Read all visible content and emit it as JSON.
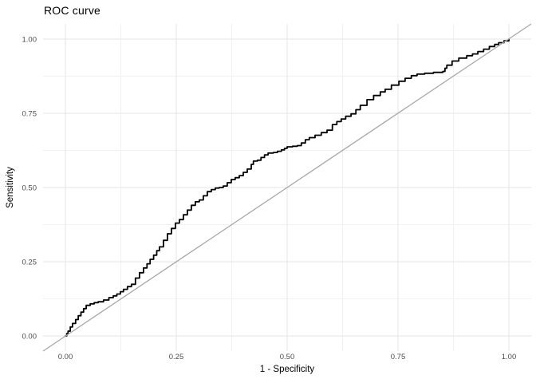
{
  "chart_data": {
    "type": "line",
    "title": "ROC curve",
    "xlabel": "1 - Specificity",
    "ylabel": "Sensitivity",
    "xlim": [
      0,
      1
    ],
    "ylim": [
      0,
      1
    ],
    "x_ticks": [
      0,
      0.25,
      0.5,
      0.75,
      1
    ],
    "y_ticks": [
      0,
      0.25,
      0.5,
      0.75,
      1
    ],
    "x_tick_labels": [
      "0.00",
      "0.25",
      "0.50",
      "0.75",
      "1.00"
    ],
    "y_tick_labels": [
      "0.00",
      "0.25",
      "0.50",
      "0.75",
      "1.00"
    ],
    "grid": "major+minor",
    "legend": "none",
    "colors": {
      "background": "#ffffff",
      "grid_major": "#e6e6e6",
      "grid_minor": "#f2f2f2",
      "tick_label": "#4d4d4d",
      "title": "#000000",
      "roc_line": "#000000",
      "reference_line": "#a8a8a8"
    },
    "series": [
      {
        "name": "ROC curve",
        "draw": "step",
        "color": "#000000",
        "width": 1.8,
        "points": [
          [
            0.0,
            0.0
          ],
          [
            0.003,
            0.008
          ],
          [
            0.006,
            0.016
          ],
          [
            0.011,
            0.03
          ],
          [
            0.016,
            0.042
          ],
          [
            0.023,
            0.055
          ],
          [
            0.029,
            0.068
          ],
          [
            0.035,
            0.08
          ],
          [
            0.041,
            0.092
          ],
          [
            0.047,
            0.103
          ],
          [
            0.056,
            0.108
          ],
          [
            0.065,
            0.112
          ],
          [
            0.074,
            0.115
          ],
          [
            0.086,
            0.121
          ],
          [
            0.098,
            0.129
          ],
          [
            0.108,
            0.135
          ],
          [
            0.116,
            0.141
          ],
          [
            0.124,
            0.149
          ],
          [
            0.131,
            0.157
          ],
          [
            0.14,
            0.166
          ],
          [
            0.149,
            0.174
          ],
          [
            0.158,
            0.195
          ],
          [
            0.167,
            0.213
          ],
          [
            0.176,
            0.229
          ],
          [
            0.184,
            0.243
          ],
          [
            0.191,
            0.258
          ],
          [
            0.199,
            0.272
          ],
          [
            0.206,
            0.287
          ],
          [
            0.212,
            0.3
          ],
          [
            0.221,
            0.322
          ],
          [
            0.23,
            0.344
          ],
          [
            0.239,
            0.362
          ],
          [
            0.248,
            0.38
          ],
          [
            0.257,
            0.392
          ],
          [
            0.266,
            0.408
          ],
          [
            0.275,
            0.424
          ],
          [
            0.284,
            0.44
          ],
          [
            0.293,
            0.452
          ],
          [
            0.302,
            0.458
          ],
          [
            0.311,
            0.472
          ],
          [
            0.32,
            0.486
          ],
          [
            0.329,
            0.493
          ],
          [
            0.338,
            0.498
          ],
          [
            0.347,
            0.5
          ],
          [
            0.356,
            0.505
          ],
          [
            0.365,
            0.516
          ],
          [
            0.374,
            0.527
          ],
          [
            0.383,
            0.533
          ],
          [
            0.392,
            0.54
          ],
          [
            0.401,
            0.551
          ],
          [
            0.41,
            0.562
          ],
          [
            0.419,
            0.578
          ],
          [
            0.424,
            0.589
          ],
          [
            0.433,
            0.592
          ],
          [
            0.441,
            0.601
          ],
          [
            0.449,
            0.61
          ],
          [
            0.457,
            0.616
          ],
          [
            0.469,
            0.618
          ],
          [
            0.478,
            0.622
          ],
          [
            0.487,
            0.627
          ],
          [
            0.494,
            0.632
          ],
          [
            0.5,
            0.637
          ],
          [
            0.512,
            0.639
          ],
          [
            0.523,
            0.641
          ],
          [
            0.532,
            0.65
          ],
          [
            0.541,
            0.661
          ],
          [
            0.55,
            0.668
          ],
          [
            0.563,
            0.676
          ],
          [
            0.577,
            0.685
          ],
          [
            0.59,
            0.693
          ],
          [
            0.602,
            0.712
          ],
          [
            0.612,
            0.722
          ],
          [
            0.622,
            0.731
          ],
          [
            0.632,
            0.74
          ],
          [
            0.644,
            0.748
          ],
          [
            0.655,
            0.762
          ],
          [
            0.665,
            0.777
          ],
          [
            0.68,
            0.796
          ],
          [
            0.695,
            0.81
          ],
          [
            0.71,
            0.822
          ],
          [
            0.721,
            0.831
          ],
          [
            0.735,
            0.845
          ],
          [
            0.752,
            0.858
          ],
          [
            0.766,
            0.868
          ],
          [
            0.78,
            0.877
          ],
          [
            0.793,
            0.882
          ],
          [
            0.81,
            0.885
          ],
          [
            0.83,
            0.888
          ],
          [
            0.851,
            0.891
          ],
          [
            0.856,
            0.902
          ],
          [
            0.86,
            0.912
          ],
          [
            0.872,
            0.926
          ],
          [
            0.887,
            0.936
          ],
          [
            0.905,
            0.944
          ],
          [
            0.918,
            0.95
          ],
          [
            0.93,
            0.958
          ],
          [
            0.943,
            0.966
          ],
          [
            0.956,
            0.975
          ],
          [
            0.968,
            0.982
          ],
          [
            0.977,
            0.988
          ],
          [
            0.989,
            0.994
          ],
          [
            1.0,
            1.0
          ]
        ]
      },
      {
        "name": "chance diagonal",
        "draw": "straight",
        "color": "#a8a8a8",
        "width": 1.3,
        "points": [
          [
            0,
            0
          ],
          [
            1,
            1
          ]
        ]
      }
    ]
  }
}
